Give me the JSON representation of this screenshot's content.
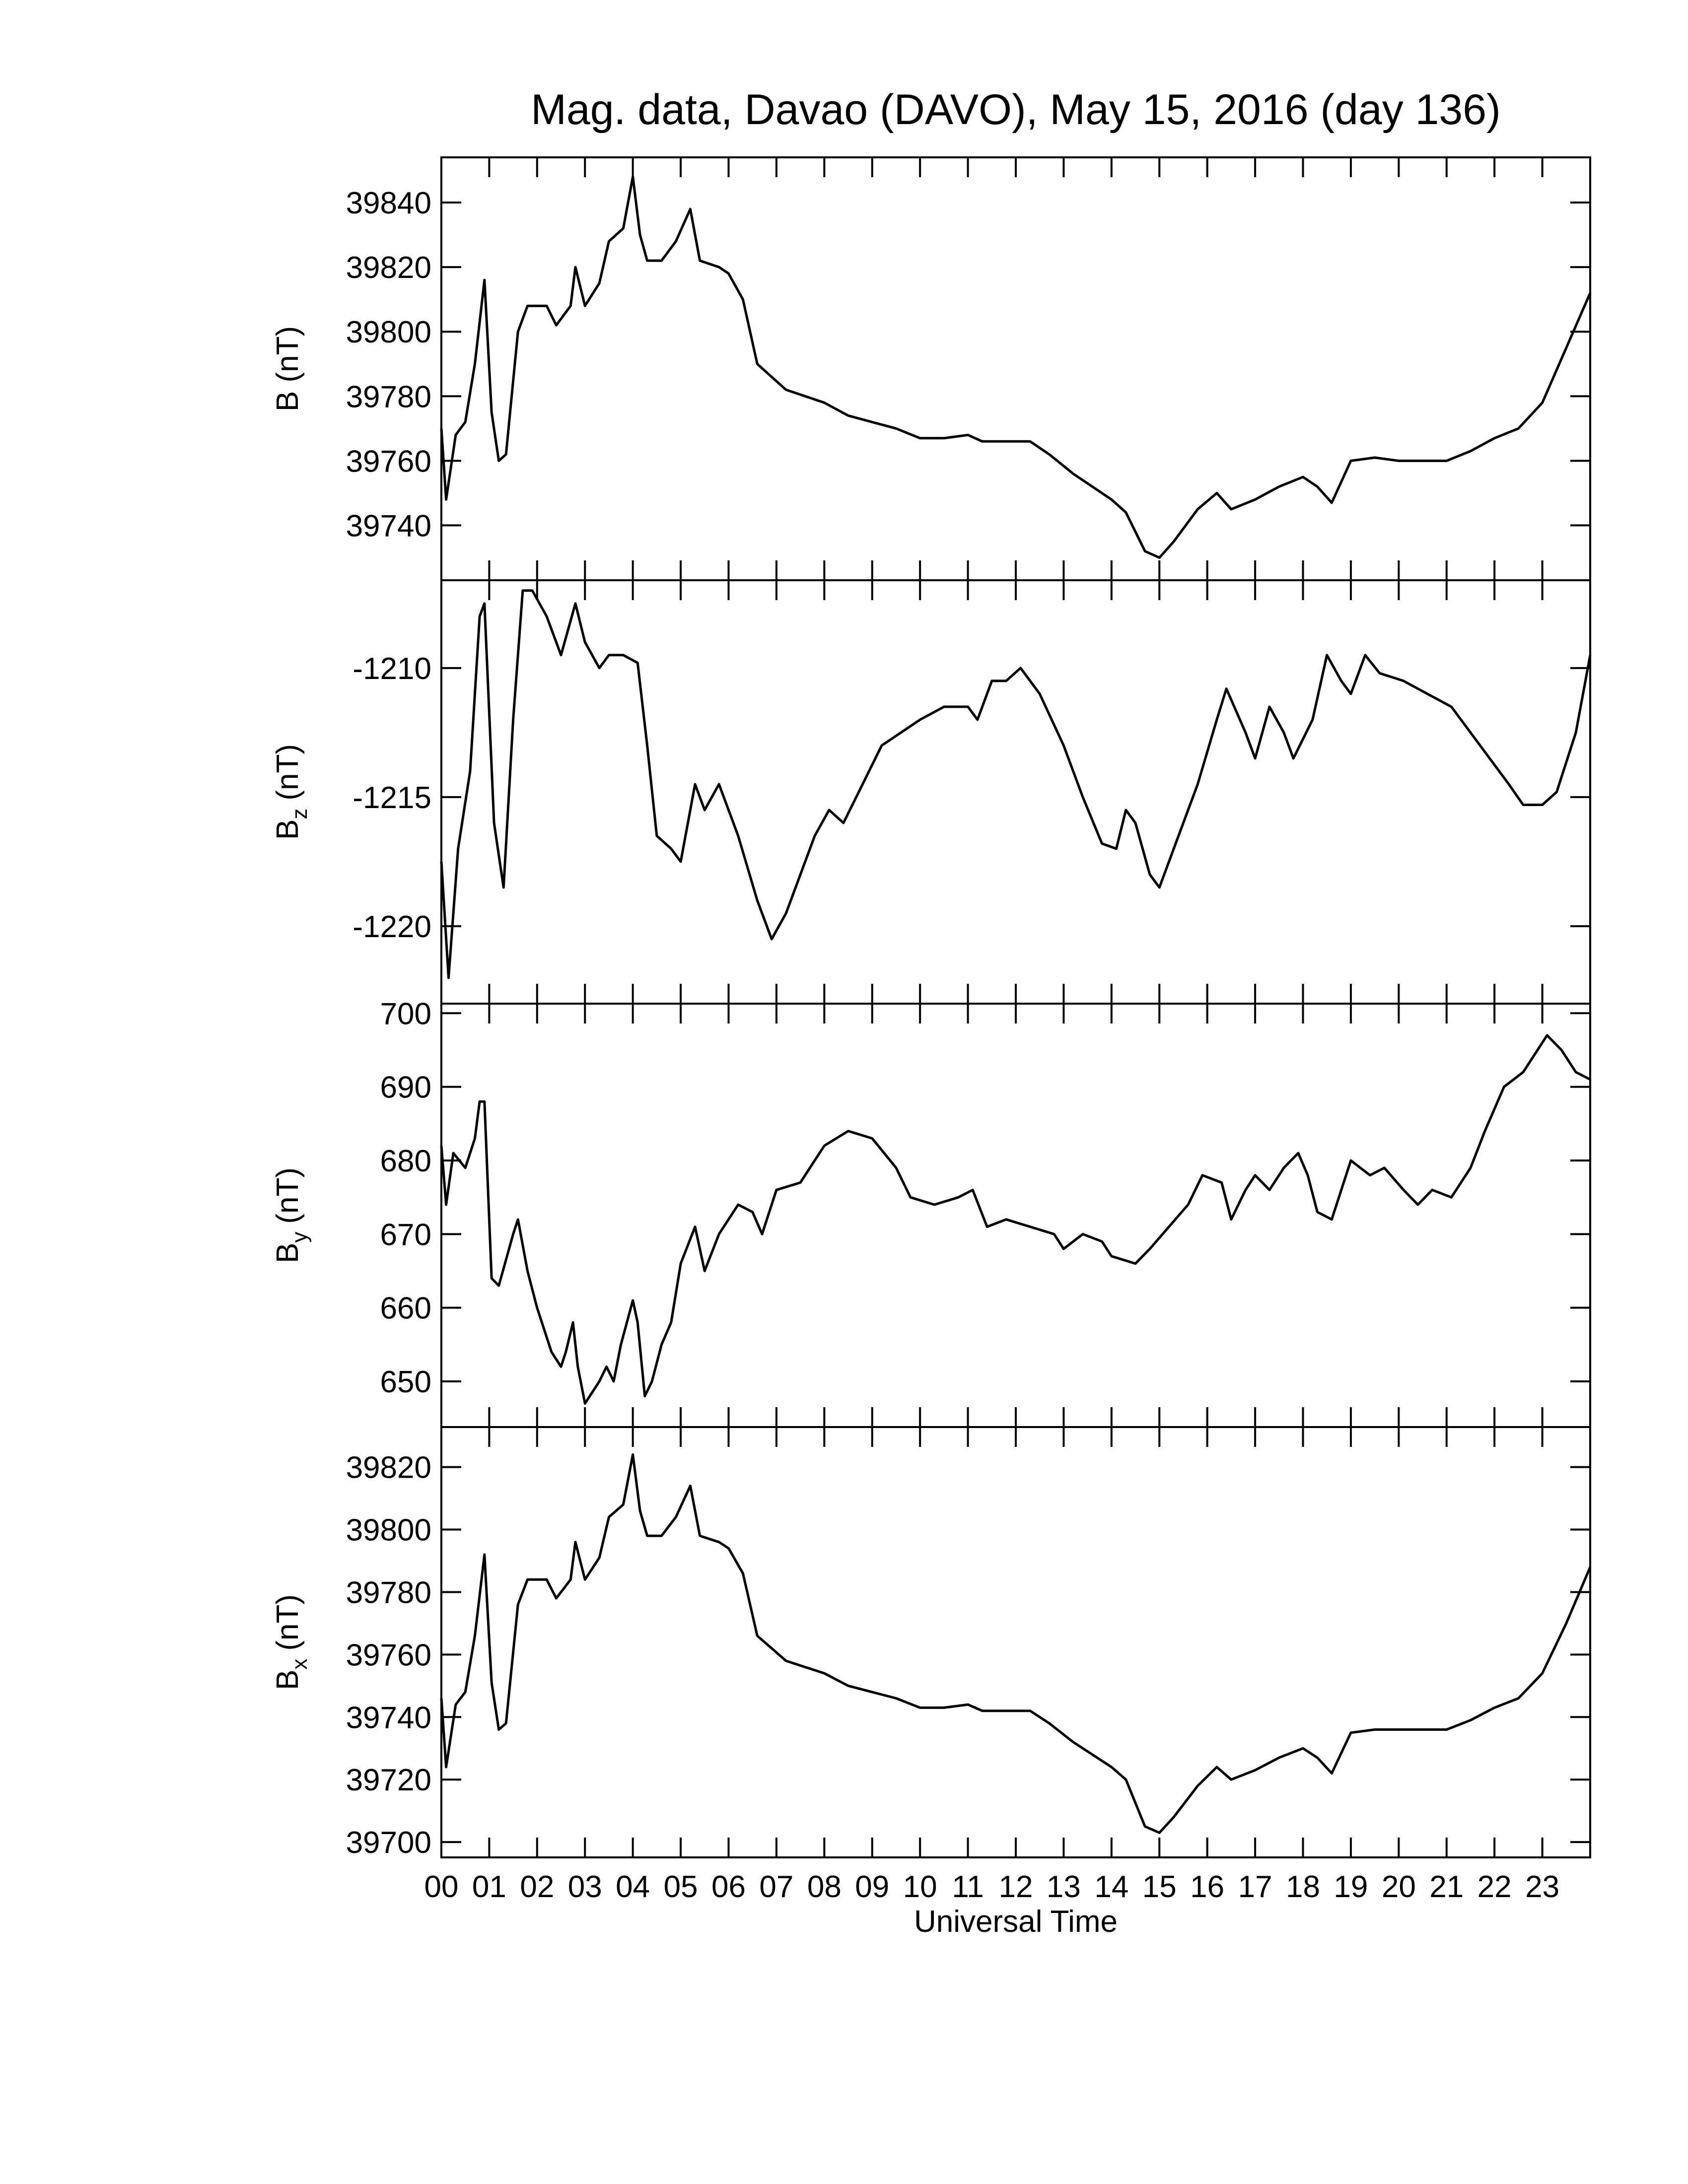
{
  "chart_data": [
    {
      "type": "line",
      "title": "Mag. data, Davao (DAVO), May 15, 2016 (day 136)",
      "ylabel": "B (nT)",
      "color": "#000000",
      "xlim": [
        0,
        24
      ],
      "ylim": [
        39723,
        39854
      ],
      "yticks": [
        39740,
        39760,
        39780,
        39800,
        39820,
        39840
      ],
      "x": [
        0,
        0.1,
        0.3,
        0.5,
        0.7,
        0.9,
        1.05,
        1.2,
        1.35,
        1.6,
        1.8,
        2.2,
        2.4,
        2.7,
        2.8,
        3.0,
        3.3,
        3.5,
        3.8,
        4.0,
        4.15,
        4.3,
        4.6,
        4.9,
        5.2,
        5.4,
        5.8,
        6.0,
        6.3,
        6.6,
        6.9,
        7.2,
        7.6,
        8.0,
        8.5,
        9.0,
        9.5,
        10,
        10.5,
        11,
        11.3,
        11.8,
        12.3,
        12.7,
        13.2,
        13.6,
        14.0,
        14.3,
        14.7,
        15.0,
        15.3,
        15.8,
        16.2,
        16.5,
        17,
        17.5,
        18,
        18.3,
        18.6,
        19.0,
        19.5,
        20,
        20.5,
        21,
        21.5,
        22,
        22.5,
        23,
        23.5,
        24
      ],
      "values": [
        39770,
        39748,
        39768,
        39772,
        39790,
        39816,
        39775,
        39760,
        39762,
        39800,
        39808,
        39808,
        39802,
        39808,
        39820,
        39808,
        39815,
        39828,
        39832,
        39848,
        39830,
        39822,
        39822,
        39828,
        39838,
        39822,
        39820,
        39818,
        39810,
        39790,
        39786,
        39782,
        39780,
        39778,
        39774,
        39772,
        39770,
        39767,
        39767,
        39768,
        39766,
        39766,
        39766,
        39762,
        39756,
        39752,
        39748,
        39744,
        39732,
        39730,
        39735,
        39745,
        39750,
        39745,
        39748,
        39752,
        39755,
        39752,
        39747,
        39760,
        39761,
        39760,
        39760,
        39760,
        39763,
        39767,
        39770,
        39778,
        39795,
        39812
      ]
    },
    {
      "type": "line",
      "ylabel": [
        "B",
        "z",
        "(nT)"
      ],
      "color": "#000000",
      "xlim": [
        0,
        24
      ],
      "ylim": [
        -1223,
        -1206.6
      ],
      "yticks": [
        -1220,
        -1215,
        -1210
      ],
      "x": [
        0,
        0.15,
        0.35,
        0.6,
        0.8,
        0.9,
        1.1,
        1.3,
        1.5,
        1.7,
        1.9,
        2.2,
        2.5,
        2.8,
        3.0,
        3.3,
        3.5,
        3.8,
        4.1,
        4.3,
        4.5,
        4.8,
        5.0,
        5.3,
        5.5,
        5.8,
        6.2,
        6.6,
        6.9,
        7.2,
        7.6,
        7.8,
        8.1,
        8.4,
        8.8,
        9.2,
        9.6,
        10.0,
        10.5,
        11,
        11.2,
        11.5,
        11.8,
        12.1,
        12.5,
        13,
        13.4,
        13.8,
        14.1,
        14.3,
        14.5,
        14.8,
        15.0,
        15.4,
        15.8,
        16.2,
        16.4,
        16.8,
        17.0,
        17.3,
        17.6,
        17.8,
        18.2,
        18.5,
        18.8,
        19.0,
        19.3,
        19.6,
        20.1,
        20.6,
        21.1,
        21.5,
        21.9,
        22.3,
        22.6,
        23.0,
        23.3,
        23.7,
        24
      ],
      "values": [
        -1217.5,
        -1222,
        -1217,
        -1214,
        -1208,
        -1207.5,
        -1216,
        -1218.5,
        -1212,
        -1207,
        -1207,
        -1208,
        -1209.5,
        -1207.5,
        -1209,
        -1210,
        -1209.5,
        -1209.5,
        -1209.8,
        -1213,
        -1216.5,
        -1217,
        -1217.5,
        -1214.5,
        -1215.5,
        -1214.5,
        -1216.5,
        -1219,
        -1220.5,
        -1219.5,
        -1217.5,
        -1216.5,
        -1215.5,
        -1216,
        -1214.5,
        -1213,
        -1212.5,
        -1212,
        -1211.5,
        -1211.5,
        -1212,
        -1210.5,
        -1210.5,
        -1210,
        -1211,
        -1213,
        -1215,
        -1216.8,
        -1217,
        -1215.5,
        -1216,
        -1218,
        -1218.5,
        -1216.5,
        -1214.5,
        -1212,
        -1210.8,
        -1212.5,
        -1213.5,
        -1211.5,
        -1212.5,
        -1213.5,
        -1212,
        -1209.5,
        -1210.5,
        -1211,
        -1209.5,
        -1210.2,
        -1210.5,
        -1211,
        -1211.5,
        -1212.5,
        -1213.5,
        -1214.5,
        -1215.3,
        -1215.3,
        -1214.8,
        -1212.5,
        -1209.5
      ]
    },
    {
      "type": "line",
      "ylabel": [
        "B",
        "y",
        "(nT)"
      ],
      "color": "#000000",
      "xlim": [
        0,
        24
      ],
      "ylim": [
        643.8,
        701.3
      ],
      "yticks": [
        650,
        660,
        670,
        680,
        690,
        700
      ],
      "x": [
        0,
        0.1,
        0.25,
        0.5,
        0.7,
        0.8,
        0.9,
        1.05,
        1.2,
        1.5,
        1.6,
        1.8,
        2.0,
        2.3,
        2.5,
        2.6,
        2.75,
        2.85,
        3.0,
        3.3,
        3.45,
        3.6,
        3.75,
        4.0,
        4.1,
        4.25,
        4.4,
        4.6,
        4.8,
        5.0,
        5.3,
        5.5,
        5.8,
        6.2,
        6.5,
        6.7,
        7.0,
        7.5,
        8.0,
        8.5,
        9.0,
        9.5,
        9.8,
        10.3,
        10.8,
        11.1,
        11.4,
        11.8,
        12.3,
        12.8,
        13.0,
        13.4,
        13.8,
        14.0,
        14.5,
        14.8,
        15.2,
        15.6,
        15.9,
        16.3,
        16.5,
        16.8,
        17.0,
        17.3,
        17.6,
        17.9,
        18.1,
        18.3,
        18.6,
        19.0,
        19.4,
        19.7,
        20.1,
        20.4,
        20.7,
        21.1,
        21.5,
        21.8,
        22.2,
        22.6,
        22.9,
        23.1,
        23.4,
        23.7,
        24
      ],
      "values": [
        682,
        674,
        681,
        679,
        683,
        688,
        688,
        664,
        663,
        670,
        672,
        665,
        660,
        654,
        652,
        654,
        658,
        652,
        647,
        650,
        652,
        650,
        655,
        661,
        658,
        648,
        650,
        655,
        658,
        666,
        671,
        665,
        670,
        674,
        673,
        670,
        676,
        677,
        682,
        684,
        683,
        679,
        675,
        674,
        675,
        676,
        671,
        672,
        671,
        670,
        668,
        670,
        669,
        667,
        666,
        668,
        671,
        674,
        678,
        677,
        672,
        676,
        678,
        676,
        679,
        681,
        678,
        673,
        672,
        680,
        678,
        679,
        676,
        674,
        676,
        675,
        679,
        684,
        690,
        692,
        695,
        697,
        695,
        692,
        691
      ]
    },
    {
      "type": "line",
      "ylabel": [
        "B",
        "x",
        "(nT)"
      ],
      "xlabel": "Universal Time",
      "color": "#000000",
      "xlim": [
        0,
        24
      ],
      "ylim": [
        39695.1,
        39832.8
      ],
      "yticks": [
        39700,
        39720,
        39740,
        39760,
        39780,
        39800,
        39820
      ],
      "xticks": [
        {
          "value": 0,
          "label": "00"
        },
        {
          "value": 1,
          "label": "01"
        },
        {
          "value": 2,
          "label": "02"
        },
        {
          "value": 3,
          "label": "03"
        },
        {
          "value": 4,
          "label": "04"
        },
        {
          "value": 5,
          "label": "05"
        },
        {
          "value": 6,
          "label": "06"
        },
        {
          "value": 7,
          "label": "07"
        },
        {
          "value": 8,
          "label": "08"
        },
        {
          "value": 9,
          "label": "09"
        },
        10,
        11,
        12,
        13,
        14,
        15,
        16,
        17,
        18,
        19,
        20,
        21,
        22,
        23
      ],
      "x": [
        0,
        0.1,
        0.3,
        0.5,
        0.7,
        0.9,
        1.05,
        1.2,
        1.35,
        1.6,
        1.8,
        2.2,
        2.4,
        2.7,
        2.8,
        3.0,
        3.3,
        3.5,
        3.8,
        4.0,
        4.15,
        4.3,
        4.6,
        4.9,
        5.2,
        5.4,
        5.8,
        6.0,
        6.3,
        6.6,
        6.9,
        7.2,
        7.6,
        8.0,
        8.5,
        9.0,
        9.5,
        10,
        10.5,
        11,
        11.3,
        11.8,
        12.3,
        12.7,
        13.2,
        13.6,
        14.0,
        14.3,
        14.7,
        15.0,
        15.3,
        15.8,
        16.2,
        16.5,
        17,
        17.5,
        18,
        18.3,
        18.6,
        19.0,
        19.5,
        20,
        20.5,
        21,
        21.5,
        22,
        22.5,
        23,
        23.5,
        24
      ],
      "values": [
        39746,
        39724,
        39744,
        39748,
        39766,
        39792,
        39751,
        39736,
        39738,
        39776,
        39784,
        39784,
        39778,
        39784,
        39796,
        39784,
        39791,
        39804,
        39808,
        39824,
        39806,
        39798,
        39798,
        39804,
        39814,
        39798,
        39796,
        39794,
        39786,
        39766,
        39762,
        39758,
        39756,
        39754,
        39750,
        39748,
        39746,
        39743,
        39743,
        39744,
        39742,
        39742,
        39742,
        39738,
        39732,
        39728,
        39724,
        39720,
        39705,
        39703,
        39708,
        39718,
        39724,
        39720,
        39723,
        39727,
        39730,
        39727,
        39722,
        39735,
        39736,
        39736,
        39736,
        39736,
        39739,
        39743,
        39746,
        39754,
        39770,
        39788
      ]
    }
  ]
}
